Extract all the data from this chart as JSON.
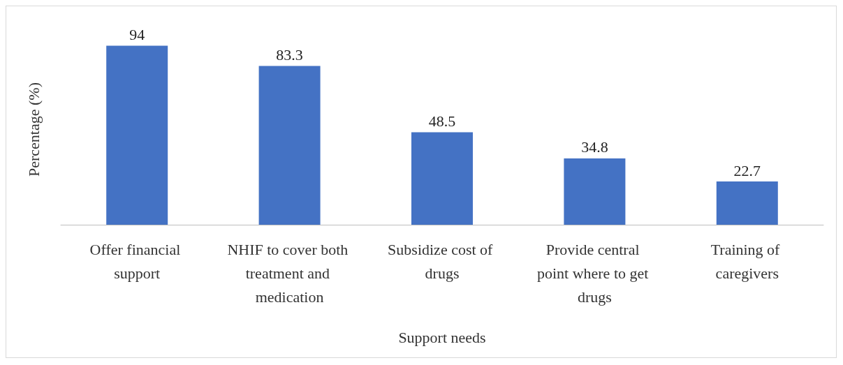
{
  "chart_data": {
    "type": "bar",
    "xlabel": "Support needs",
    "ylabel": "Percentage (%)",
    "categories": [
      "Offer financial support",
      "NHIF to cover both treatment and medication",
      "Subsidize cost of drugs",
      "Provide central point where to get drugs",
      "Training of caregivers"
    ],
    "values": [
      94,
      83.3,
      48.5,
      34.8,
      22.7
    ],
    "color": "#4472c4",
    "data_labels": true,
    "grid": false
  }
}
